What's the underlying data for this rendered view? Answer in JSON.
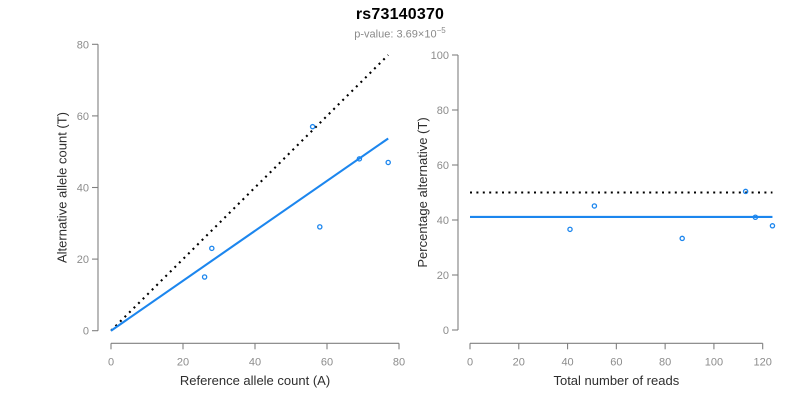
{
  "header": {
    "title": "rs73140370",
    "subtitle_prefix": "p-value: ",
    "pvalue_mantissa": "3.69",
    "pvalue_times": "×",
    "pvalue_base": "10",
    "pvalue_exponent": "−5"
  },
  "style": {
    "accent": "#1C86EE",
    "identity_line_color": "#000000",
    "axis_color": "#808080",
    "tick_label_color": "#8c8c8c",
    "axis_title_color": "#2e2e2e"
  },
  "chart_data": [
    {
      "type": "scatter",
      "title": "",
      "xlabel": "Reference allele count (A)",
      "ylabel": "Alternative allele count (T)",
      "xlim": [
        0,
        80
      ],
      "ylim": [
        0,
        80
      ],
      "xticks": [
        0,
        20,
        40,
        60,
        80
      ],
      "yticks": [
        0,
        20,
        40,
        60,
        80
      ],
      "grid": false,
      "legend": false,
      "points": [
        [
          26,
          15
        ],
        [
          28,
          23
        ],
        [
          56,
          57
        ],
        [
          58,
          29
        ],
        [
          69,
          48
        ],
        [
          77,
          47
        ]
      ],
      "lines": [
        {
          "name": "identity-line",
          "style": "dotted",
          "color": "#000000",
          "x1": 0,
          "y1": 0,
          "x2": 77,
          "y2": 77
        },
        {
          "name": "fit-line",
          "style": "solid",
          "color": "#1C86EE",
          "x1": 0,
          "y1": 0,
          "x2": 77,
          "y2": 53.7
        }
      ]
    },
    {
      "type": "scatter",
      "title": "",
      "xlabel": "Total number of reads",
      "ylabel": "Percentage alternative (T)",
      "xlim": [
        0,
        124
      ],
      "ylim": [
        0,
        100
      ],
      "xticks": [
        0,
        20,
        40,
        60,
        80,
        100,
        120
      ],
      "yticks": [
        0,
        20,
        40,
        60,
        80,
        100
      ],
      "grid": false,
      "legend": false,
      "points": [
        [
          41,
          36.6
        ],
        [
          51,
          45.1
        ],
        [
          87,
          33.3
        ],
        [
          113,
          50.4
        ],
        [
          117,
          41.0
        ],
        [
          124,
          37.9
        ]
      ],
      "lines": [
        {
          "name": "fifty-percent-line",
          "style": "dotted",
          "color": "#000000",
          "x1": 0,
          "y1": 50,
          "x2": 124,
          "y2": 50
        },
        {
          "name": "mean-percentage-line",
          "style": "solid",
          "color": "#1C86EE",
          "x1": 0,
          "y1": 41.1,
          "x2": 124,
          "y2": 41.1
        }
      ]
    }
  ]
}
